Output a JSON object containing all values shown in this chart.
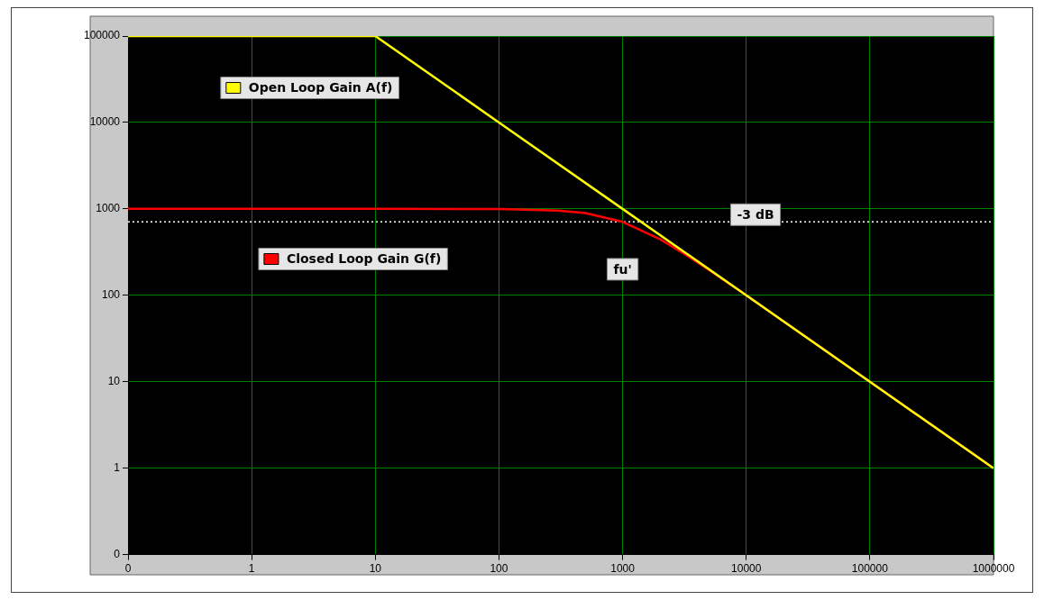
{
  "chart_data": {
    "type": "line",
    "log": "xy",
    "grid": true,
    "legend": "top left",
    "marker": "none",
    "line_style": "solid",
    "xlim": [
      0.1,
      1000000
    ],
    "xticks": [
      {
        "value": 0.1,
        "label": "0"
      },
      1,
      10,
      100,
      1000,
      10000,
      100000,
      1000000
    ],
    "ylim": [
      0.1,
      100000
    ],
    "yticks": [
      {
        "value": 0.1,
        "label": "0"
      },
      1,
      10,
      100,
      1000,
      10000,
      100000
    ],
    "series": [
      {
        "name": "Open Loop Gain A(f)",
        "color": "#ffff00",
        "x": [
          0.1,
          10,
          100,
          1000,
          10000,
          100000,
          1000000
        ],
        "values": [
          100000,
          100000,
          10000,
          1000,
          100,
          10,
          1
        ]
      },
      {
        "name": "Closed Loop Gain G(f)",
        "color": "#ff0000",
        "x": [
          0.1,
          10,
          100,
          300,
          500,
          1000,
          2000,
          3000,
          5000,
          10000,
          100000,
          1000000
        ],
        "values": [
          1000,
          1000,
          995,
          958,
          894,
          707,
          447,
          316,
          196,
          100,
          10,
          1
        ]
      }
    ],
    "ref_lines": [
      {
        "axis": "y",
        "value": 707,
        "label": "-3 dB",
        "color": "#ffffff",
        "line_style": "dotted"
      }
    ],
    "annotations": [
      {
        "text": "fu'",
        "x": 1000,
        "y": 200
      }
    ]
  }
}
